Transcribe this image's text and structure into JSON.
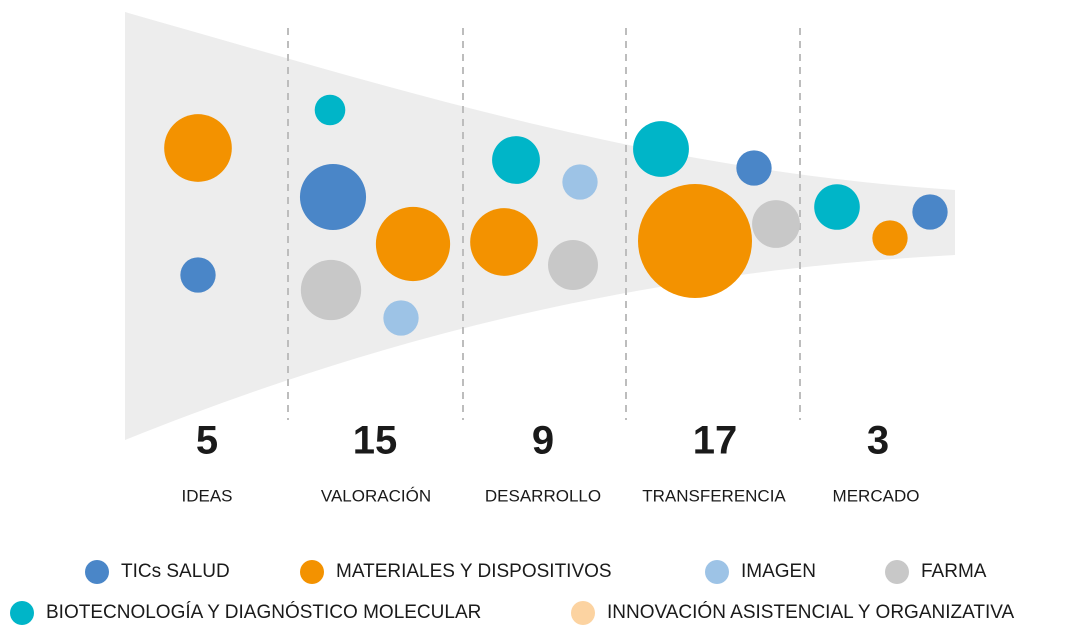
{
  "chart_data": {
    "type": "bubble",
    "categories": [
      "IDEAS",
      "VALORACIÓN",
      "DESARROLLO",
      "TRANSFERENCIA",
      "MERCADO"
    ],
    "totals": [
      5,
      15,
      9,
      17,
      3
    ],
    "series": [
      {
        "name": "TICs SALUD",
        "color": "#4a86c8",
        "values": [
          1.2,
          4.2,
          null,
          1.2,
          1.2
        ]
      },
      {
        "name": "MATERIALES Y DISPOSITIVOS",
        "color": "#f39200",
        "values": [
          4.4,
          5.3,
          4.4,
          12.5,
          1.2
        ]
      },
      {
        "name": "IMAGEN",
        "color": "#9dc3e6",
        "values": [
          null,
          1.2,
          1.2,
          null,
          null
        ]
      },
      {
        "name": "FARMA",
        "color": "#c8c8c8",
        "values": [
          null,
          3.5,
          2.4,
          2.2,
          null
        ]
      },
      {
        "name": "BIOTECNOLOGÍA Y DIAGNÓSTICO MOLECULAR",
        "color": "#00b5c8",
        "values": [
          null,
          0.9,
          2.2,
          3.0,
          2.0
        ]
      },
      {
        "name": "INNOVACIÓN ASISTENCIAL Y ORGANIZATIVA",
        "color": "#fcd3a1",
        "values": [
          null,
          null,
          null,
          null,
          null
        ]
      }
    ]
  }
}
